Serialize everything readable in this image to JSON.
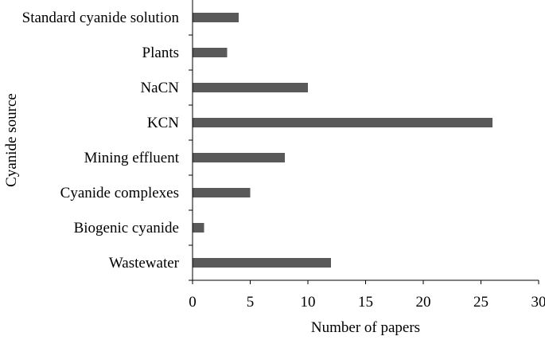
{
  "chart_data": {
    "type": "bar",
    "orientation": "horizontal",
    "title": "",
    "xlabel": "Number of papers",
    "ylabel": "Cyanide source",
    "categories": [
      "Standard cyanide solution",
      "Plants",
      "NaCN",
      "KCN",
      "Mining effluent",
      "Cyanide complexes",
      "Biogenic cyanide",
      "Wastewater"
    ],
    "values": [
      4,
      3,
      10,
      26,
      8,
      5,
      1,
      12
    ],
    "xlim": [
      0,
      30
    ],
    "xticks": [
      "0",
      "5",
      "10",
      "15",
      "20",
      "25",
      "30"
    ],
    "grid": false,
    "legend": "none",
    "bar_color": "#595959"
  }
}
